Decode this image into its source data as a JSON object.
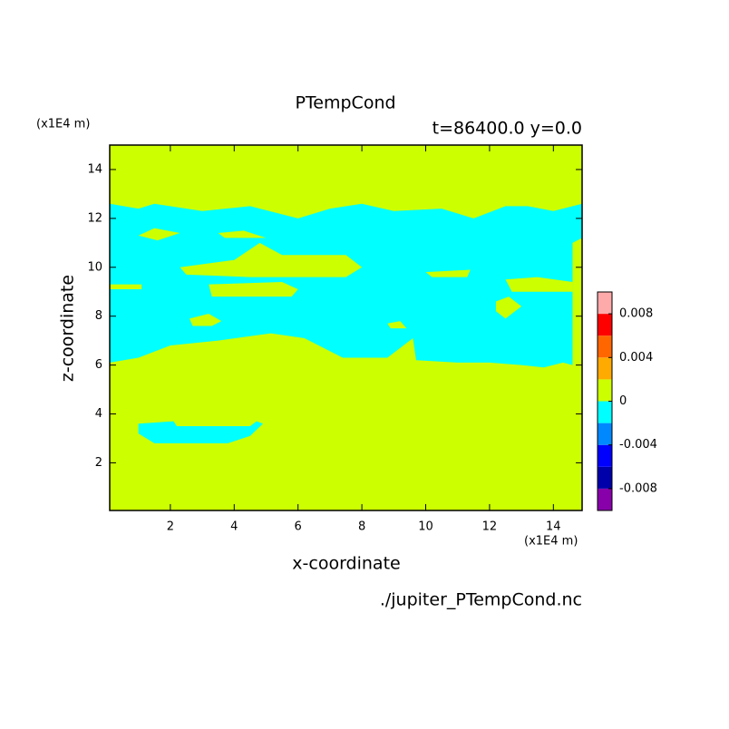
{
  "chart_data": {
    "type": "contour",
    "title": "PTempCond",
    "subtitle": "t=86400.0 y=0.0",
    "xlabel": "x-coordinate",
    "ylabel": "z-coordinate",
    "x_unit": "(x1E4 m)",
    "y_unit": "(x1E4 m)",
    "source": "./jupiter_PTempCond.nc",
    "xlim": [
      0.1,
      14.9
    ],
    "ylim": [
      0.05,
      15
    ],
    "xticks": [
      2,
      4,
      6,
      8,
      10,
      12,
      14
    ],
    "yticks": [
      2,
      4,
      6,
      8,
      10,
      12,
      14
    ],
    "regions": [
      {
        "color": "#ccff00",
        "points": [
          [
            0.1,
            0.05
          ],
          [
            14.9,
            0.05
          ],
          [
            14.9,
            15
          ],
          [
            0.1,
            15
          ]
        ]
      },
      {
        "color": "#00ffff",
        "points": [
          [
            0.1,
            6.1
          ],
          [
            1.0,
            6.3
          ],
          [
            2.0,
            6.8
          ],
          [
            3.5,
            7.0
          ],
          [
            5.15,
            7.3
          ],
          [
            6.2,
            7.1
          ],
          [
            7.4,
            6.3
          ],
          [
            8.8,
            6.3
          ],
          [
            9.6,
            7.1
          ],
          [
            9.7,
            6.2
          ],
          [
            11.0,
            6.1
          ],
          [
            12.0,
            6.1
          ],
          [
            13.0,
            6.0
          ],
          [
            13.7,
            5.9
          ],
          [
            14.3,
            6.1
          ],
          [
            14.6,
            6.0
          ],
          [
            14.6,
            11.0
          ],
          [
            14.9,
            11.2
          ],
          [
            14.9,
            12.6
          ],
          [
            14.0,
            12.3
          ],
          [
            13.2,
            12.5
          ],
          [
            12.5,
            12.5
          ],
          [
            11.5,
            12.0
          ],
          [
            10.5,
            12.4
          ],
          [
            9.0,
            12.3
          ],
          [
            8.0,
            12.6
          ],
          [
            7.0,
            12.4
          ],
          [
            6.0,
            12.0
          ],
          [
            4.5,
            12.5
          ],
          [
            3.0,
            12.3
          ],
          [
            1.5,
            12.6
          ],
          [
            1.0,
            12.4
          ],
          [
            0.1,
            12.6
          ]
        ]
      },
      {
        "color": "#ccff00",
        "points": [
          [
            2.3,
            10.0
          ],
          [
            4.0,
            10.3
          ],
          [
            4.8,
            11.0
          ],
          [
            5.5,
            10.5
          ],
          [
            7.5,
            10.5
          ],
          [
            8.0,
            10.0
          ],
          [
            7.5,
            9.6
          ],
          [
            4.5,
            9.6
          ],
          [
            2.5,
            9.7
          ]
        ]
      },
      {
        "color": "#ccff00",
        "points": [
          [
            3.2,
            9.3
          ],
          [
            5.5,
            9.4
          ],
          [
            6.0,
            9.1
          ],
          [
            5.8,
            8.8
          ],
          [
            3.3,
            8.8
          ]
        ]
      },
      {
        "color": "#ccff00",
        "points": [
          [
            0.1,
            9.3
          ],
          [
            1.1,
            9.3
          ],
          [
            1.1,
            9.1
          ],
          [
            0.1,
            9.1
          ]
        ]
      },
      {
        "color": "#ccff00",
        "points": [
          [
            10.0,
            9.8
          ],
          [
            11.4,
            9.9
          ],
          [
            11.3,
            9.6
          ],
          [
            10.2,
            9.6
          ]
        ]
      },
      {
        "color": "#ccff00",
        "points": [
          [
            12.5,
            9.5
          ],
          [
            13.5,
            9.6
          ],
          [
            14.6,
            9.4
          ],
          [
            14.6,
            9.0
          ],
          [
            12.7,
            9.0
          ]
        ]
      },
      {
        "color": "#ccff00",
        "points": [
          [
            2.6,
            7.9
          ],
          [
            3.2,
            8.1
          ],
          [
            3.6,
            7.8
          ],
          [
            3.3,
            7.6
          ],
          [
            2.7,
            7.6
          ]
        ]
      },
      {
        "color": "#ccff00",
        "points": [
          [
            12.2,
            8.6
          ],
          [
            12.6,
            8.8
          ],
          [
            13.0,
            8.4
          ],
          [
            12.5,
            7.9
          ],
          [
            12.2,
            8.2
          ]
        ]
      },
      {
        "color": "#ccff00",
        "points": [
          [
            8.8,
            7.7
          ],
          [
            9.2,
            7.8
          ],
          [
            9.4,
            7.5
          ],
          [
            8.9,
            7.5
          ]
        ]
      },
      {
        "color": "#ccff00",
        "points": [
          [
            3.5,
            11.4
          ],
          [
            4.3,
            11.5
          ],
          [
            5.0,
            11.2
          ],
          [
            3.7,
            11.2
          ]
        ]
      },
      {
        "color": "#ccff00",
        "points": [
          [
            1.0,
            11.3
          ],
          [
            1.5,
            11.6
          ],
          [
            2.3,
            11.4
          ],
          [
            1.6,
            11.1
          ]
        ]
      },
      {
        "color": "#00ffff",
        "points": [
          [
            1.0,
            3.6
          ],
          [
            2.1,
            3.7
          ],
          [
            2.2,
            3.5
          ],
          [
            4.5,
            3.5
          ],
          [
            4.7,
            3.7
          ],
          [
            4.9,
            3.6
          ],
          [
            4.5,
            3.1
          ],
          [
            3.8,
            2.8
          ],
          [
            1.5,
            2.8
          ],
          [
            1.0,
            3.2
          ]
        ]
      }
    ],
    "colorbar": {
      "levels": [
        -0.01,
        -0.008,
        -0.006,
        -0.004,
        -0.002,
        0,
        0.002,
        0.004,
        0.006,
        0.008,
        0.01
      ],
      "colors": [
        "#8800aa",
        "#0000aa",
        "#0000ff",
        "#0088ff",
        "#00ffff",
        "#ccff00",
        "#ffaa00",
        "#ff6600",
        "#ff0000",
        "#ffaaaa"
      ],
      "ticks": [
        -0.008,
        -0.004,
        0,
        0.004,
        0.008
      ]
    }
  }
}
